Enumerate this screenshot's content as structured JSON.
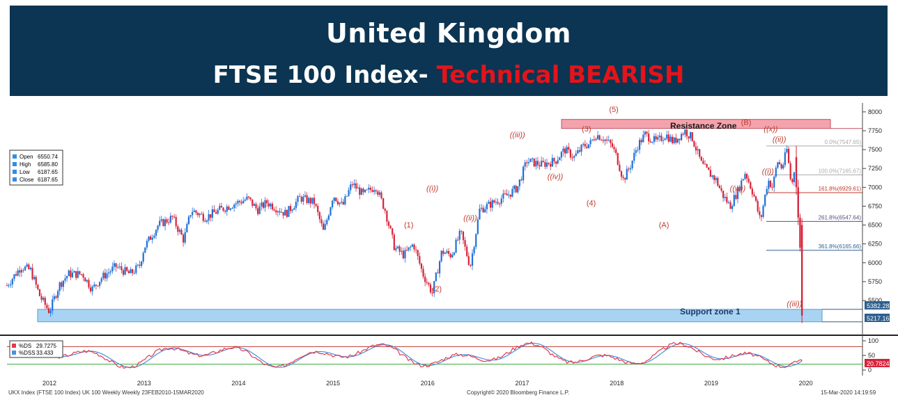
{
  "header": {
    "title": "United Kingdom",
    "subtitle_prefix": "FTSE 100 Index- ",
    "subtitle_highlight": "Technical BEARISH"
  },
  "colors": {
    "banner": "#0b3552",
    "bearish": "#e3141b",
    "up_candle": "#1f6fd6",
    "down_candle": "#d6243a",
    "resistance_zone": "#f4a3ad",
    "support_zone": "#a9d3f3",
    "wave_label": "#c0392b",
    "ds_line": "#e0394c",
    "dss_line": "#4a90e2"
  },
  "legend": {
    "open_label": "Open",
    "open_value": "6550.74",
    "high_label": "High",
    "high_value": "6585.80",
    "low_label": "Low",
    "low_value": "6187.65",
    "close_label": "Close",
    "close_value": "6187.65"
  },
  "zones": {
    "resistance_label": "Resistance Zone",
    "support_label": "Support zone 1"
  },
  "fib_labels": [
    "0.0%(7547.65)",
    "100.0%(7165.67)",
    "161.8%(6929.61)",
    "261.8%(6547.64)",
    "361.8%(6165.66)"
  ],
  "price_tags": {
    "support_top": "5382.28",
    "support_bottom": "5217.16"
  },
  "osc": {
    "ds_label": "%DS",
    "ds_value": "29.7275",
    "dss_label": "%DSS",
    "dss_value": "33.433",
    "last_tag": "20.7824",
    "ticks": [
      "100",
      "50",
      "0"
    ]
  },
  "footer": {
    "left": "UKX Index (FTSE 100 Index) UK 100 Weekly  Weekly 23FEB2010-15MAR2020",
    "center": "Copyright© 2020 Bloomberg Finance L.P.",
    "right": "15-Mar-2020 14:19:59"
  },
  "wave_labels": [
    {
      "text": "(1)",
      "year": 2015.8,
      "price": 6470
    },
    {
      "text": "(2)",
      "year": 2016.1,
      "price": 5620
    },
    {
      "text": "((i))",
      "year": 2016.05,
      "price": 6950
    },
    {
      "text": "((ii))",
      "year": 2016.45,
      "price": 6560
    },
    {
      "text": "((iii))",
      "year": 2016.95,
      "price": 7660
    },
    {
      "text": "((iv))",
      "year": 2017.35,
      "price": 7110
    },
    {
      "text": "(3)",
      "year": 2017.68,
      "price": 7740
    },
    {
      "text": "(4)",
      "year": 2017.73,
      "price": 6760
    },
    {
      "text": "(5)",
      "year": 2017.97,
      "price": 8000
    },
    {
      "text": "(A)",
      "year": 2018.5,
      "price": 6470
    },
    {
      "text": "(B)",
      "year": 2019.37,
      "price": 7830
    },
    {
      "text": "((w))",
      "year": 2019.28,
      "price": 6950
    },
    {
      "text": "((x))",
      "year": 2019.63,
      "price": 7740
    },
    {
      "text": "((ii))",
      "year": 2019.72,
      "price": 7600
    },
    {
      "text": "((i))",
      "year": 2019.6,
      "price": 7180
    },
    {
      "text": "((iii))",
      "year": 2019.88,
      "price": 5420
    }
  ],
  "chart_data": {
    "type": "line",
    "title": "",
    "xlabel": "",
    "ylabel": "",
    "x_ticks": [
      "2012",
      "2013",
      "2014",
      "2015",
      "2016",
      "2017",
      "2018",
      "2019",
      "2020"
    ],
    "y_ticks": [
      5500,
      5750,
      6000,
      6250,
      6500,
      6750,
      7000,
      7250,
      7500,
      7750,
      8000
    ],
    "ylim": [
      5150,
      8100
    ],
    "xlim": [
      2011.55,
      2020.6
    ],
    "grid": false,
    "legend": "top-left",
    "resistance_zone": [
      7780,
      7900
    ],
    "support_zone": [
      5217.16,
      5382.28
    ],
    "fib_levels": [
      {
        "label": "0.0%",
        "value": 7547.65
      },
      {
        "label": "100.0%",
        "value": 7165.67
      },
      {
        "label": "161.8%",
        "value": 6929.61
      },
      {
        "label": "261.8%",
        "value": 6547.64
      },
      {
        "label": "361.8%",
        "value": 6165.66
      }
    ],
    "series": [
      {
        "x": [
          2011.55,
          2011.7,
          2011.8,
          2011.9,
          2012.0,
          2012.1,
          2012.2,
          2012.35,
          2012.45,
          2012.55,
          2012.7,
          2012.85,
          2012.95,
          2013.0,
          2013.15,
          2013.3,
          2013.42,
          2013.5,
          2013.65,
          2013.8,
          2013.95,
          2014.1,
          2014.2,
          2014.3,
          2014.5,
          2014.65,
          2014.8,
          2014.9,
          2015.0,
          2015.1,
          2015.2,
          2015.32,
          2015.45,
          2015.55,
          2015.65,
          2015.75,
          2015.85,
          2015.95,
          2016.05,
          2016.15,
          2016.25,
          2016.35,
          2016.45,
          2016.55,
          2016.7,
          2016.85,
          2016.95,
          2017.05,
          2017.2,
          2017.35,
          2017.45,
          2017.55,
          2017.65,
          2017.72,
          2017.78,
          2017.86,
          2017.95,
          2018.0,
          2018.07,
          2018.15,
          2018.22,
          2018.3,
          2018.42,
          2018.52,
          2018.6,
          2018.72,
          2018.8,
          2018.9,
          2018.97,
          2019.05,
          2019.12,
          2019.2,
          2019.28,
          2019.36,
          2019.45,
          2019.52,
          2019.6,
          2019.65,
          2019.7,
          2019.75,
          2019.8,
          2019.85,
          2019.88
        ],
        "y": [
          5700,
          5950,
          5900,
          5550,
          5350,
          5700,
          5850,
          5850,
          5650,
          5800,
          5950,
          5850,
          5950,
          6200,
          6500,
          6600,
          6300,
          6700,
          6600,
          6700,
          6780,
          6850,
          6700,
          6800,
          6650,
          6860,
          6800,
          6400,
          6900,
          6750,
          7050,
          6900,
          7020,
          6700,
          6200,
          6100,
          6250,
          5850,
          5600,
          6150,
          6100,
          6400,
          5950,
          6700,
          6800,
          6900,
          7000,
          7350,
          7300,
          7350,
          7500,
          7400,
          7550,
          7580,
          7700,
          7650,
          7550,
          7400,
          7100,
          7300,
          7550,
          7700,
          7600,
          7700,
          7600,
          7750,
          7650,
          7300,
          7200,
          7100,
          6900,
          6750,
          6950,
          7200,
          6900,
          6550,
          7100,
          7000,
          7350,
          7250,
          7500,
          7000,
          7250
        ]
      }
    ],
    "oscillator": {
      "name": "%DS / %DSS",
      "ylim": [
        0,
        100
      ],
      "levels": [
        80,
        20
      ],
      "last_ds": 29.7275,
      "last_dss": 33.433
    }
  }
}
